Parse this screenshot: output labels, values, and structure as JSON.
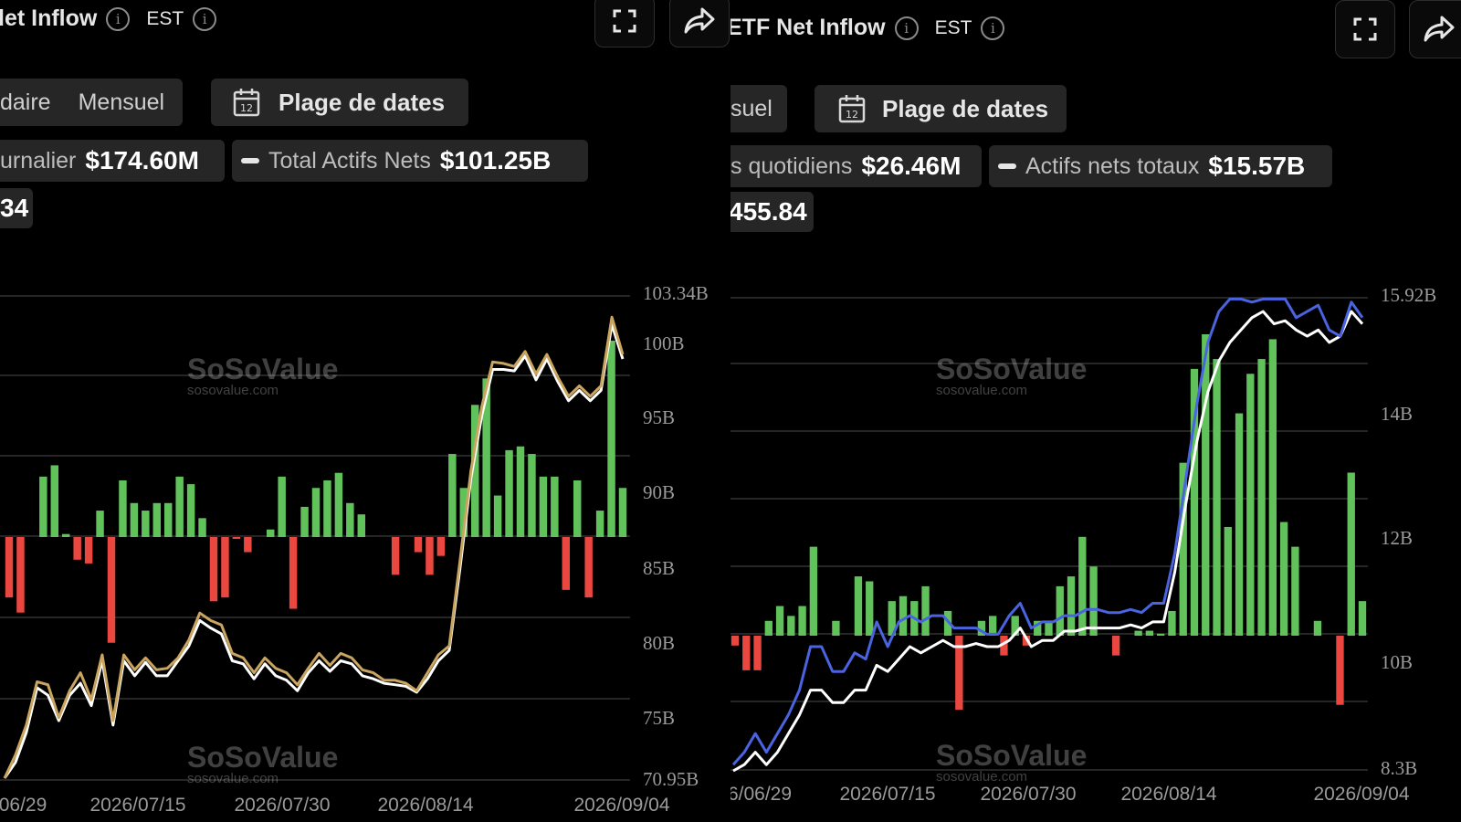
{
  "left": {
    "title": "let Inflow",
    "timezone": "EST",
    "tabs": [
      "daire",
      "Mensuel"
    ],
    "date_range_label": "Plage de dates",
    "calendar_day": "12",
    "stat_daily_label": "urnalier",
    "stat_daily_value": "$174.60M",
    "stat_total_label": "Total Actifs Nets",
    "stat_total_value": "$101.25B",
    "stat_extra_value": "34",
    "watermark_name": "SoSoValue",
    "watermark_url": "sosovalue.com",
    "colors": {
      "positive": "#61c15a",
      "negative": "#e9473f",
      "line_primary": "#c9a560",
      "line_secondary": "#ffffff",
      "grid": "#3c3c3c",
      "axis_text": "#9a9a9a"
    },
    "icons": [
      "info-icon",
      "fullscreen-icon",
      "share-icon",
      "calendar-icon"
    ],
    "chart_data": {
      "type": "bar",
      "x_ticks": [
        "06/29",
        "2026/07/15",
        "2026/07/30",
        "2026/08/14",
        "2026/09/04"
      ],
      "y_right_ticks": [
        "103.34B",
        "100B",
        "95B",
        "90B",
        "85B",
        "80B",
        "75B",
        "70.95B"
      ],
      "bar_values": [
        -0.8,
        -1.0,
        0,
        0.8,
        0.95,
        0.04,
        -0.3,
        -0.35,
        0.35,
        -1.4,
        0.75,
        0.45,
        0.35,
        0.45,
        0.45,
        0.8,
        0.7,
        0.25,
        -0.85,
        -0.8,
        -0.02,
        -0.2,
        0,
        0.1,
        0.8,
        -0.95,
        0.4,
        0.65,
        0.75,
        0.85,
        0.45,
        0.3,
        0,
        0,
        -0.5,
        0,
        -0.2,
        -0.5,
        -0.25,
        1.1,
        0.65,
        1.75,
        2.1,
        0.55,
        1.15,
        1.2,
        1.1,
        0.8,
        0.8,
        -0.7,
        0.75,
        -0.8,
        0.35,
        2.6,
        0.65
      ],
      "bar_scale_max": 2.6,
      "net_assets_B": [
        70.95,
        72.5,
        74.5,
        77.4,
        77.2,
        75.0,
        76.8,
        78.0,
        76.2,
        79.2,
        74.8,
        79.2,
        78.2,
        79.0,
        78.2,
        78.3,
        79.0,
        80.2,
        82.0,
        81.5,
        81.2,
        79.3,
        79.0,
        78.0,
        79.0,
        78.3,
        78.0,
        77.2,
        78.3,
        79.3,
        78.5,
        79.3,
        79.0,
        78.2,
        78.0,
        77.5,
        77.5,
        77.3,
        76.8,
        78.0,
        79.2,
        79.8,
        85.5,
        91.5,
        95.8,
        98.8,
        98.7,
        98.5,
        99.5,
        98.0,
        99.3,
        97.8,
        96.5,
        97.2,
        96.5,
        97.2,
        101.8,
        99.3
      ],
      "flow_index_B": [
        70.95,
        72.0,
        74.0,
        77.0,
        76.5,
        74.8,
        76.5,
        77.3,
        75.8,
        78.8,
        74.5,
        78.8,
        77.8,
        78.7,
        77.8,
        77.8,
        78.8,
        79.8,
        81.5,
        81.0,
        80.6,
        78.8,
        78.6,
        77.6,
        78.6,
        77.8,
        77.5,
        76.8,
        78.0,
        78.8,
        78.1,
        78.8,
        78.6,
        77.8,
        77.6,
        77.3,
        77.2,
        77.1,
        76.7,
        77.6,
        78.8,
        79.5,
        85.0,
        91.0,
        95.2,
        98.3,
        98.3,
        98.2,
        99.2,
        97.6,
        99.0,
        97.5,
        96.2,
        96.9,
        96.2,
        96.9,
        101.3,
        99.0
      ],
      "ylim": [
        70.95,
        103.34
      ]
    }
  },
  "right": {
    "title": "ETF Net Inflow",
    "timezone": "EST",
    "tab": "suel",
    "date_range_label": "Plage de dates",
    "calendar_day": "12",
    "stat_daily_label": "s quotidiens",
    "stat_daily_value": "$26.46M",
    "stat_total_label": "Actifs nets totaux",
    "stat_total_value": "$15.57B",
    "stat_extra_value": "455.84",
    "watermark_name": "SoSoValue",
    "watermark_url": "sosovalue.com",
    "colors": {
      "positive": "#61c15a",
      "negative": "#e9473f",
      "line_primary": "#4a63e0",
      "line_secondary": "#ffffff",
      "grid": "#3c3c3c",
      "axis_text": "#9a9a9a"
    },
    "icons": [
      "info-icon",
      "fullscreen-icon",
      "share-icon",
      "calendar-icon"
    ],
    "chart_data": {
      "type": "bar",
      "x_ticks": [
        "6/06/29",
        "2026/07/15",
        "2026/07/30",
        "2026/08/14",
        "2026/09/04"
      ],
      "y_right_ticks": [
        "15.92B",
        "14B",
        "12B",
        "10B",
        "8.3B"
      ],
      "bar_values": [
        -0.1,
        -0.35,
        -0.35,
        0.15,
        0.3,
        0.2,
        0.3,
        0.9,
        0,
        0.15,
        0,
        0.6,
        0.55,
        0,
        0.35,
        0.4,
        0.35,
        0.5,
        0,
        0.25,
        -0.75,
        0,
        0.15,
        0.2,
        -0.2,
        0.2,
        -0.1,
        0.15,
        0.15,
        0.5,
        0.6,
        1.0,
        0.7,
        0,
        -0.2,
        0,
        0.05,
        0.05,
        0.02,
        0.25,
        1.75,
        2.7,
        3.05,
        2.8,
        1.1,
        2.25,
        2.65,
        2.8,
        3.0,
        1.15,
        0.9,
        0,
        0.15,
        0,
        -0.7,
        1.65,
        0.35
      ],
      "bar_scale_max": 3.05,
      "net_assets_blue_B": [
        8.4,
        8.6,
        8.9,
        8.6,
        8.9,
        9.2,
        9.6,
        10.3,
        10.3,
        9.9,
        9.9,
        10.2,
        10.1,
        10.7,
        10.3,
        10.7,
        10.8,
        10.7,
        10.8,
        10.8,
        10.6,
        10.6,
        10.6,
        10.5,
        10.5,
        10.8,
        11.0,
        10.6,
        10.7,
        10.7,
        10.8,
        10.8,
        10.9,
        10.9,
        10.85,
        10.85,
        10.9,
        10.85,
        11.0,
        11.0,
        11.8,
        13.0,
        14.2,
        15.2,
        15.7,
        15.9,
        15.9,
        15.85,
        15.9,
        15.9,
        15.9,
        15.6,
        15.7,
        15.8,
        15.4,
        15.3,
        15.85,
        15.6
      ],
      "net_assets_white_B": [
        8.3,
        8.4,
        8.6,
        8.4,
        8.6,
        8.9,
        9.2,
        9.6,
        9.6,
        9.4,
        9.4,
        9.6,
        9.6,
        10.0,
        9.9,
        10.1,
        10.3,
        10.2,
        10.3,
        10.4,
        10.3,
        10.3,
        10.35,
        10.3,
        10.3,
        10.4,
        10.6,
        10.3,
        10.4,
        10.4,
        10.55,
        10.55,
        10.6,
        10.6,
        10.6,
        10.6,
        10.65,
        10.6,
        10.7,
        10.7,
        11.5,
        12.6,
        13.6,
        14.4,
        14.9,
        15.2,
        15.4,
        15.6,
        15.7,
        15.5,
        15.55,
        15.4,
        15.3,
        15.4,
        15.2,
        15.3,
        15.7,
        15.5
      ],
      "ylim": [
        8.3,
        15.92
      ]
    }
  }
}
